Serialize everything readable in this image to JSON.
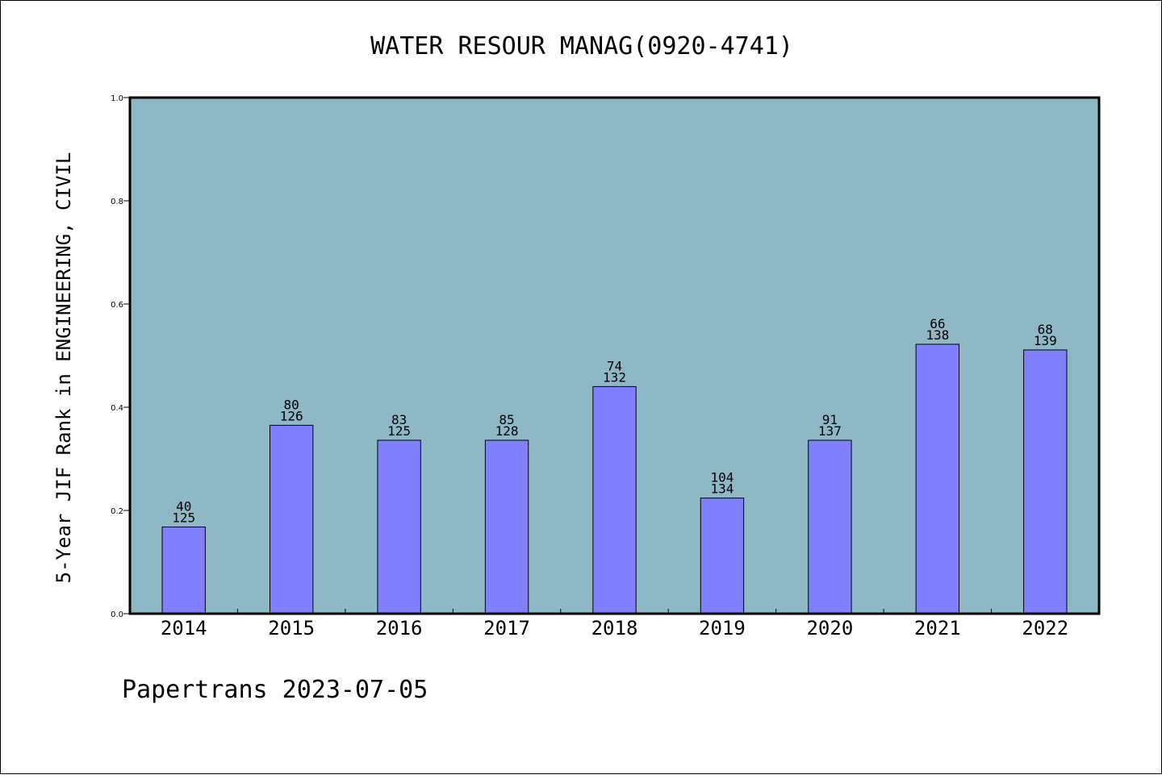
{
  "chart_data": {
    "type": "bar",
    "title": "WATER RESOUR MANAG(0920-4741)",
    "xlabel": "",
    "ylabel": "5-Year JIF Rank in ENGINEERING, CIVIL",
    "ylim": [
      0,
      1.0
    ],
    "yticks": [
      "0.0",
      "0.2",
      "0.4",
      "0.6",
      "0.8",
      "1.0"
    ],
    "categories": [
      "2014",
      "2015",
      "2016",
      "2017",
      "2018",
      "2019",
      "2020",
      "2021",
      "2022"
    ],
    "values": [
      0.168,
      0.365,
      0.336,
      0.336,
      0.44,
      0.224,
      0.336,
      0.522,
      0.511
    ],
    "rank": [
      "40",
      "80",
      "83",
      "85",
      "74",
      "104",
      "91",
      "66",
      "68"
    ],
    "total": [
      "125",
      "126",
      "125",
      "128",
      "132",
      "134",
      "137",
      "138",
      "139"
    ],
    "grid": false,
    "colors": {
      "plot_bg": "#8fb8c6",
      "bar": "#8080ff"
    }
  },
  "footer": "Papertrans 2023-07-05"
}
